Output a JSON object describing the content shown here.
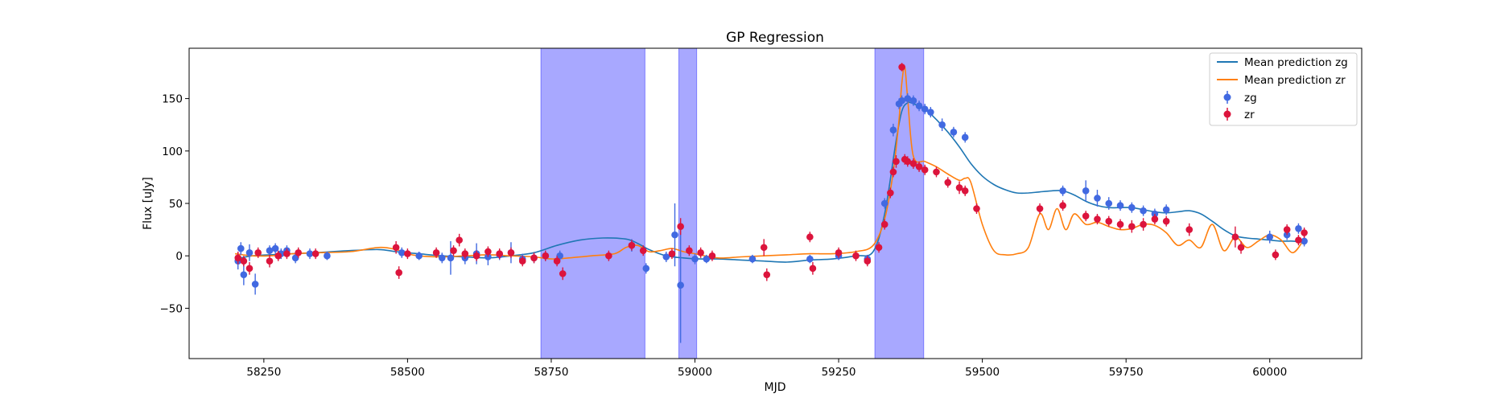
{
  "chart_data": {
    "type": "scatter",
    "title": "GP Regression",
    "xlabel": "MJD",
    "ylabel": "Flux [uJy]",
    "xlim": [
      58120,
      60160
    ],
    "ylim": [
      -98,
      198
    ],
    "xticks": [
      58250,
      58500,
      58750,
      59000,
      59250,
      59500,
      59750,
      60000
    ],
    "yticks": [
      -50,
      0,
      50,
      100,
      150
    ],
    "grid": false,
    "legend_position": "top-right",
    "shaded_regions": [
      {
        "x0": 58732,
        "x1": 58913
      },
      {
        "x0": 58972,
        "x1": 59003
      },
      {
        "x0": 59313,
        "x1": 59398
      }
    ],
    "colors": {
      "zg_line": "#1f77b4",
      "zr_line": "#ff7f0e",
      "zg_points": "#4169e1",
      "zr_points": "#dc143c",
      "shade": "#0000ff"
    },
    "series": [
      {
        "name": "Mean prediction zg",
        "kind": "line",
        "x": [
          58200,
          58230,
          58260,
          58300,
          58340,
          58400,
          58450,
          58480,
          58520,
          58560,
          58600,
          58640,
          58680,
          58720,
          58760,
          58800,
          58840,
          58880,
          58900,
          58920,
          58950,
          58980,
          59010,
          59040,
          59080,
          59120,
          59160,
          59200,
          59240,
          59280,
          59310,
          59330,
          59350,
          59360,
          59370,
          59380,
          59400,
          59420,
          59440,
          59460,
          59480,
          59500,
          59520,
          59540,
          59560,
          59580,
          59600,
          59620,
          59640,
          59660,
          59680,
          59700,
          59720,
          59740,
          59760,
          59780,
          59800,
          59820,
          59840,
          59860,
          59880,
          59900,
          59920,
          59940,
          59960,
          59980,
          60000,
          60020,
          60040,
          60060
        ],
        "y": [
          -3,
          0,
          1,
          2,
          3,
          5,
          6,
          4,
          2,
          0,
          -1,
          -2,
          0,
          3,
          10,
          15,
          17,
          16,
          12,
          6,
          0,
          -2,
          -3,
          -3,
          -4,
          -5,
          -6,
          -4,
          -3,
          0,
          4,
          40,
          110,
          138,
          146,
          145,
          140,
          130,
          118,
          104,
          88,
          76,
          68,
          63,
          60,
          60,
          61,
          62,
          62,
          58,
          52,
          48,
          46,
          46,
          46,
          44,
          42,
          41,
          42,
          43,
          40,
          33,
          25,
          19,
          17,
          16,
          15,
          14,
          14,
          13
        ]
      },
      {
        "name": "Mean prediction zr",
        "kind": "line",
        "x": [
          58200,
          58230,
          58260,
          58300,
          58340,
          58400,
          58450,
          58480,
          58500,
          58520,
          58560,
          58600,
          58640,
          58680,
          58720,
          58750,
          58780,
          58820,
          58860,
          58880,
          58900,
          58920,
          58940,
          58960,
          58980,
          59000,
          59040,
          59080,
          59120,
          59160,
          59200,
          59240,
          59280,
          59310,
          59330,
          59345,
          59355,
          59360,
          59365,
          59370,
          59380,
          59400,
          59420,
          59440,
          59460,
          59470,
          59480,
          59500,
          59520,
          59540,
          59560,
          59580,
          59600,
          59615,
          59630,
          59645,
          59660,
          59680,
          59700,
          59720,
          59740,
          59760,
          59780,
          59800,
          59820,
          59840,
          59860,
          59880,
          59900,
          59920,
          59940,
          59960,
          59980,
          60000,
          60020,
          60040,
          60060
        ],
        "y": [
          2,
          0,
          0,
          2,
          3,
          4,
          8,
          6,
          2,
          0,
          -1,
          0,
          1,
          0,
          -1,
          -3,
          -2,
          0,
          2,
          8,
          10,
          4,
          5,
          7,
          4,
          2,
          -2,
          -1,
          0,
          1,
          2,
          2,
          4,
          10,
          35,
          80,
          130,
          165,
          180,
          150,
          95,
          90,
          85,
          78,
          72,
          74,
          70,
          30,
          5,
          1,
          2,
          8,
          40,
          25,
          45,
          25,
          40,
          30,
          32,
          28,
          25,
          26,
          30,
          29,
          22,
          10,
          15,
          8,
          30,
          5,
          18,
          8,
          14,
          20,
          15,
          3,
          16
        ]
      },
      {
        "name": "zg",
        "kind": "errorbar",
        "x": [
          58205,
          58210,
          58215,
          58225,
          58235,
          58260,
          58270,
          58280,
          58290,
          58305,
          58330,
          58360,
          58490,
          58520,
          58560,
          58575,
          58600,
          58620,
          58640,
          58660,
          58680,
          58700,
          58720,
          58740,
          58765,
          58890,
          58915,
          58950,
          58965,
          58975,
          59000,
          59020,
          59100,
          59200,
          59250,
          59300,
          59330,
          59345,
          59355,
          59360,
          59370,
          59380,
          59390,
          59400,
          59410,
          59430,
          59450,
          59470,
          59640,
          59680,
          59700,
          59720,
          59740,
          59760,
          59780,
          59800,
          59820,
          60000,
          60030,
          60050,
          60060
        ],
        "y": [
          -5,
          7,
          -18,
          3,
          -27,
          5,
          7,
          2,
          5,
          -2,
          2,
          0,
          3,
          0,
          -2,
          -2,
          -2,
          2,
          -1,
          1,
          3,
          -3,
          -2,
          0,
          0,
          10,
          -12,
          -1,
          20,
          -28,
          -3,
          -3,
          -3,
          -3,
          0,
          -3,
          50,
          120,
          145,
          148,
          150,
          148,
          143,
          140,
          137,
          125,
          118,
          113,
          62,
          62,
          55,
          50,
          48,
          46,
          43,
          40,
          44,
          18,
          20,
          26,
          14
        ],
        "err": [
          8,
          6,
          10,
          8,
          10,
          5,
          5,
          5,
          5,
          5,
          5,
          4,
          5,
          4,
          5,
          16,
          6,
          10,
          8,
          5,
          10,
          5,
          5,
          5,
          5,
          6,
          5,
          5,
          30,
          55,
          5,
          4,
          4,
          4,
          4,
          4,
          5,
          6,
          5,
          5,
          5,
          5,
          5,
          5,
          5,
          6,
          5,
          5,
          5,
          10,
          8,
          6,
          5,
          5,
          5,
          5,
          5,
          6,
          5,
          5,
          5
        ]
      },
      {
        "name": "zr",
        "kind": "errorbar",
        "x": [
          58205,
          58215,
          58225,
          58240,
          58260,
          58275,
          58290,
          58310,
          58340,
          58480,
          58485,
          58500,
          58550,
          58580,
          58590,
          58600,
          58620,
          58640,
          58660,
          58680,
          58700,
          58720,
          58740,
          58760,
          58770,
          58850,
          58890,
          58910,
          58960,
          58975,
          58990,
          59010,
          59030,
          59120,
          59125,
          59200,
          59205,
          59250,
          59280,
          59300,
          59320,
          59330,
          59340,
          59345,
          59350,
          59360,
          59365,
          59370,
          59380,
          59390,
          59400,
          59420,
          59440,
          59460,
          59470,
          59490,
          59600,
          59640,
          59680,
          59700,
          59720,
          59740,
          59760,
          59780,
          59800,
          59820,
          59860,
          59940,
          59950,
          60010,
          60030,
          60050,
          60060
        ],
        "y": [
          -2,
          -5,
          -12,
          3,
          -5,
          0,
          2,
          3,
          2,
          8,
          -16,
          2,
          3,
          5,
          15,
          2,
          0,
          4,
          2,
          3,
          -5,
          -2,
          0,
          -5,
          -17,
          0,
          10,
          5,
          2,
          28,
          5,
          3,
          0,
          8,
          -18,
          18,
          -12,
          3,
          0,
          -5,
          8,
          30,
          60,
          80,
          90,
          180,
          92,
          90,
          88,
          85,
          82,
          80,
          70,
          65,
          62,
          45,
          45,
          48,
          38,
          35,
          33,
          30,
          28,
          30,
          35,
          33,
          25,
          18,
          8,
          1,
          25,
          15,
          22
        ],
        "err": [
          6,
          5,
          6,
          5,
          6,
          5,
          5,
          5,
          5,
          6,
          6,
          5,
          5,
          5,
          6,
          5,
          5,
          5,
          5,
          5,
          5,
          5,
          5,
          5,
          6,
          5,
          5,
          5,
          5,
          8,
          5,
          5,
          5,
          8,
          6,
          5,
          6,
          5,
          5,
          5,
          5,
          5,
          5,
          5,
          6,
          4,
          5,
          5,
          5,
          5,
          5,
          5,
          5,
          6,
          5,
          5,
          5,
          5,
          5,
          5,
          5,
          5,
          6,
          6,
          5,
          5,
          6,
          10,
          6,
          5,
          5,
          5,
          5
        ]
      }
    ]
  }
}
